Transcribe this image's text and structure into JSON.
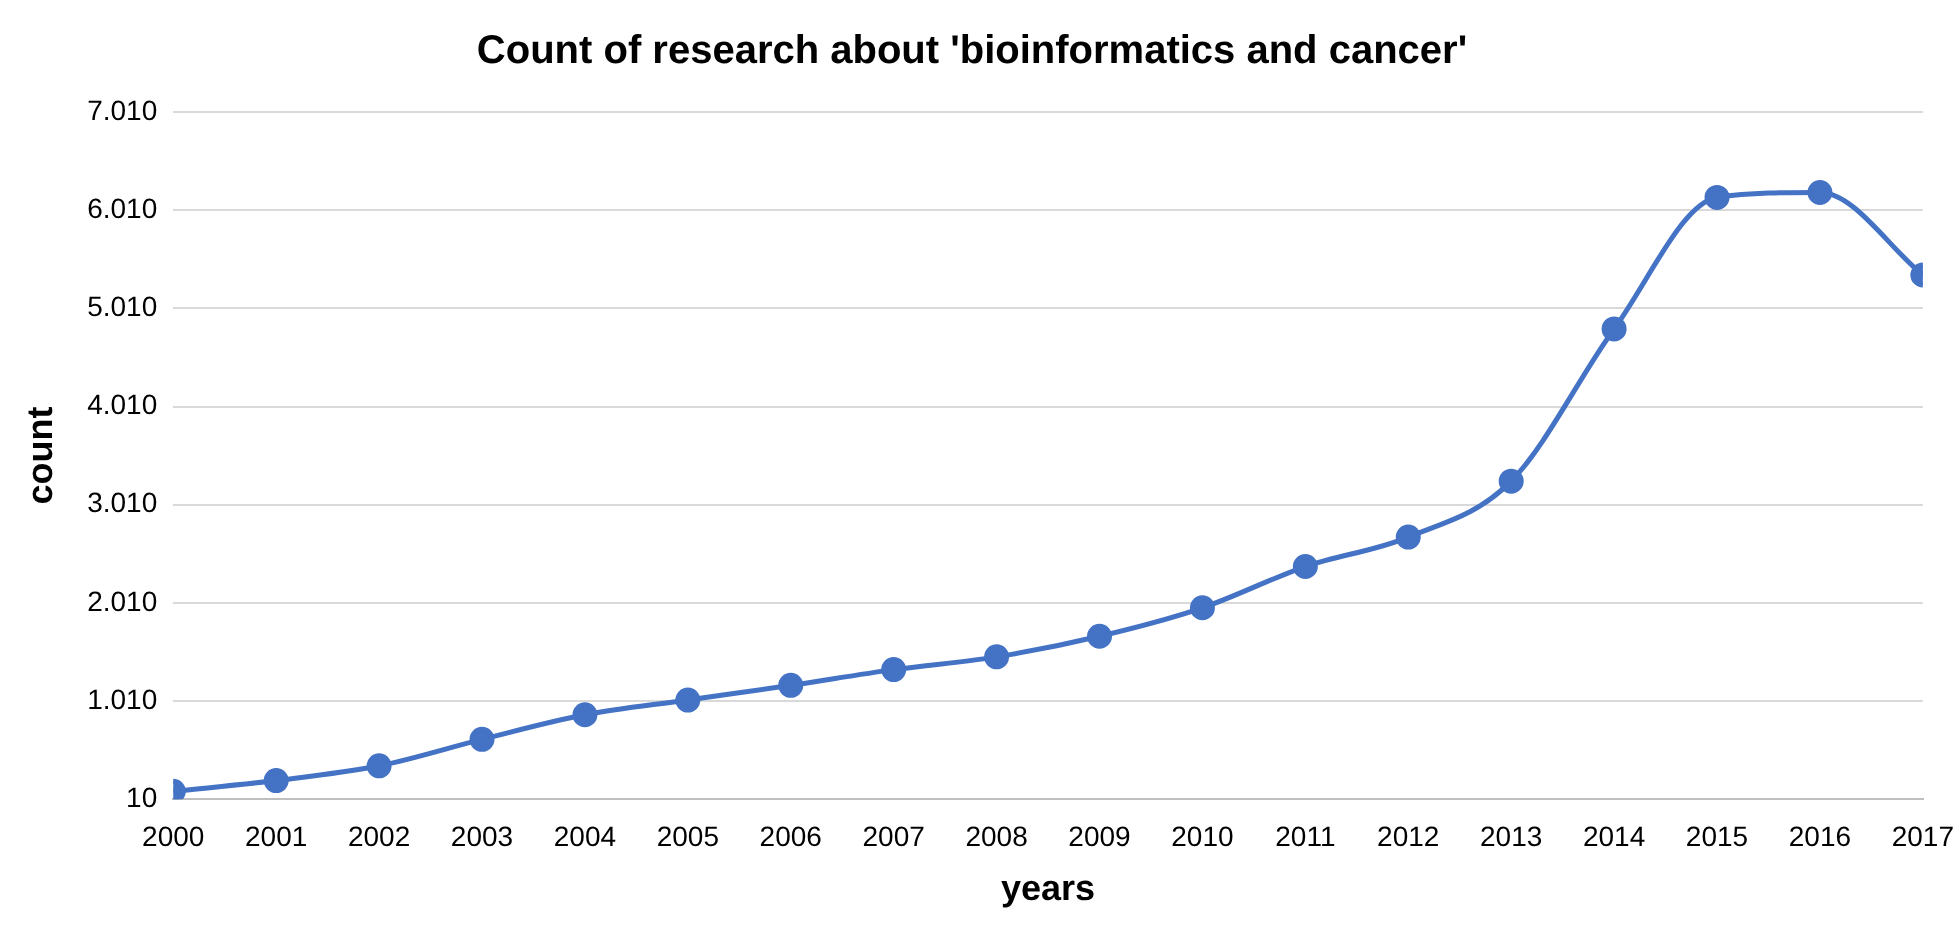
{
  "chart_data": {
    "type": "line",
    "title": "Count of research about 'bioinformatics and cancer'",
    "xlabel": "years",
    "ylabel": "count",
    "x": [
      2000,
      2001,
      2002,
      2003,
      2004,
      2005,
      2006,
      2007,
      2008,
      2009,
      2010,
      2011,
      2012,
      2013,
      2014,
      2015,
      2016,
      2017
    ],
    "values": [
      90,
      200,
      350,
      620,
      870,
      1020,
      1170,
      1330,
      1460,
      1670,
      1960,
      2380,
      2680,
      3250,
      4800,
      6140,
      6190,
      5350
    ],
    "color": "#4472c4",
    "marker": "circle",
    "line_style": "solid",
    "grid": "y",
    "xlim": [
      2000,
      2017
    ],
    "xticks": [
      2000,
      2001,
      2002,
      2003,
      2004,
      2005,
      2006,
      2007,
      2008,
      2009,
      2010,
      2011,
      2012,
      2013,
      2014,
      2015,
      2016,
      2017
    ],
    "ylim": [
      10,
      7010
    ],
    "yticks": [
      10,
      {
        "value": 1010,
        "label": "1.010"
      },
      {
        "value": 2010,
        "label": "2.010"
      },
      {
        "value": 3010,
        "label": "3.010"
      },
      {
        "value": 4010,
        "label": "4.010"
      },
      {
        "value": 5010,
        "label": "5.010"
      },
      {
        "value": 6010,
        "label": "6.010"
      },
      {
        "value": 7010,
        "label": "7.010"
      }
    ]
  }
}
